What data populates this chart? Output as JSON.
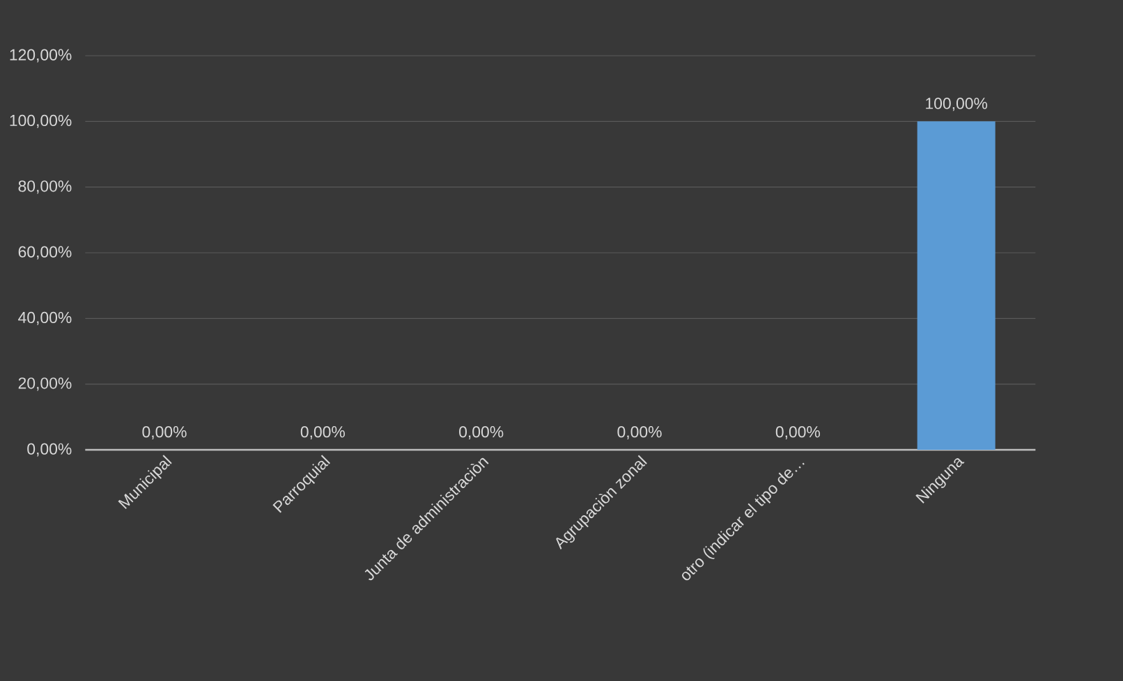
{
  "chart_data": {
    "type": "bar",
    "categories": [
      "Municipal",
      "Parroquial",
      "Junta de administraciòn",
      "Agrupaciòn zonal",
      "otro (indicar el tipo de…",
      "Ninguna"
    ],
    "values": [
      0,
      0,
      0,
      0,
      0,
      100
    ],
    "value_labels": [
      "0,00%",
      "0,00%",
      "0,00%",
      "0,00%",
      "0,00%",
      "100,00%"
    ],
    "color": "#5b9bd5",
    "ylim": [
      0,
      120
    ],
    "yticks": [
      {
        "value": 0,
        "label": "0,00%"
      },
      {
        "value": 20,
        "label": "20,00%"
      },
      {
        "value": 40,
        "label": "40,00%"
      },
      {
        "value": 60,
        "label": "60,00%"
      },
      {
        "value": 80,
        "label": "80,00%"
      },
      {
        "value": 100,
        "label": "100,00%"
      },
      {
        "value": 120,
        "label": "120,00%"
      }
    ],
    "grid": "y"
  }
}
